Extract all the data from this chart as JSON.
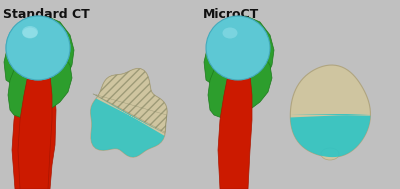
{
  "title_left": "Standard CT",
  "title_right": "MicroCT",
  "bg_color": "#c0c0c0",
  "title_fontsize": 9,
  "title_fontweight": "bold",
  "fig_width": 4.0,
  "fig_height": 1.89,
  "dpi": 100,
  "shaft_color": "#cc1a00",
  "shaft_edge": "#aa1500",
  "green_color": "#2d9e2d",
  "green_edge": "#1e7a1e",
  "cyan_color": "#5dc8d4",
  "cyan_highlight": "#a8e8f0",
  "bone_color": "#cfc5a0",
  "bone_edge": "#b0a580",
  "teal_color": "#2ec4c4"
}
